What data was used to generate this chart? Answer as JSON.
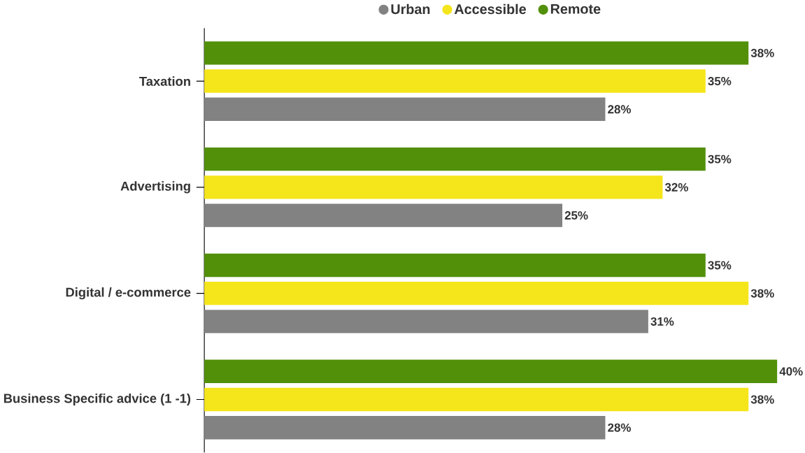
{
  "chart_data": {
    "type": "bar",
    "orientation": "horizontal",
    "legend": "top",
    "categories": [
      "Taxation",
      "Advertising",
      "Digital / e-commerce",
      "Business Specific advice (1 -1)"
    ],
    "series": [
      {
        "name": "Urban",
        "color": "#828282",
        "values": [
          28,
          25,
          31,
          28
        ],
        "value_labels": [
          "28%",
          "25%",
          "31%",
          "28%"
        ]
      },
      {
        "name": "Accessible",
        "color": "#f5e51b",
        "values": [
          35,
          32,
          38,
          38
        ],
        "value_labels": [
          "35%",
          "32%",
          "38%",
          "38%"
        ]
      },
      {
        "name": "Remote",
        "color": "#52900a",
        "values": [
          38,
          35,
          35,
          40
        ],
        "value_labels": [
          "38%",
          "35%",
          "35%",
          "40%"
        ]
      }
    ]
  }
}
